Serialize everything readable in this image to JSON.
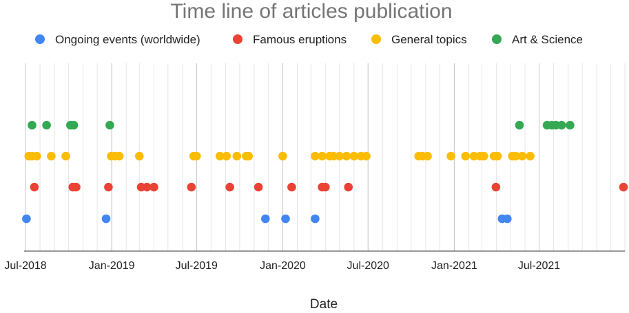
{
  "chart_data": {
    "type": "scatter",
    "title": "Time line of articles publication",
    "xlabel": "Date",
    "ylabel": "",
    "x_axis": {
      "type": "date",
      "min": "2018-07-01",
      "max": "2021-12-31",
      "tick_labels": [
        "Jul-2018",
        "Jan-2019",
        "Jul-2019",
        "Jan-2020",
        "Jul-2020",
        "Jan-2021",
        "Jul-2021"
      ],
      "tick_dates": [
        "2018-07-01",
        "2019-01-01",
        "2019-07-01",
        "2020-01-01",
        "2020-07-01",
        "2021-01-01",
        "2021-07-01"
      ],
      "minor_grid": "monthly"
    },
    "legend": {
      "position": "top"
    },
    "grid": true,
    "series": [
      {
        "name": "Ongoing events (worldwide)",
        "color": "#4285F4",
        "dates": [
          "2018-07-03",
          "2018-12-20",
          "2019-11-25",
          "2020-01-07",
          "2020-03-10",
          "2021-04-13",
          "2021-04-24"
        ]
      },
      {
        "name": "Famous eruptions",
        "color": "#EA4335",
        "dates": [
          "2018-07-20",
          "2018-10-10",
          "2018-10-17",
          "2018-12-25",
          "2019-03-05",
          "2019-03-17",
          "2019-04-01",
          "2019-06-20",
          "2019-09-10",
          "2019-11-10",
          "2020-01-20",
          "2020-03-25",
          "2020-04-01",
          "2020-05-20",
          "2021-03-31",
          "2021-12-28"
        ]
      },
      {
        "name": "General topics",
        "color": "#FBBC04",
        "dates": [
          "2018-07-08",
          "2018-07-15",
          "2018-07-25",
          "2018-08-25",
          "2018-09-25",
          "2018-12-31",
          "2019-01-08",
          "2019-01-17",
          "2019-03-01",
          "2019-06-25",
          "2019-07-01",
          "2019-08-20",
          "2019-09-03",
          "2019-09-25",
          "2019-10-15",
          "2019-10-20",
          "2020-01-01",
          "2020-03-10",
          "2020-03-25",
          "2020-04-10",
          "2020-04-18",
          "2020-05-01",
          "2020-05-16",
          "2020-06-01",
          "2020-06-16",
          "2020-06-27",
          "2020-10-17",
          "2020-10-25",
          "2020-11-05",
          "2020-12-25",
          "2021-01-25",
          "2021-02-12",
          "2021-02-25",
          "2021-03-05",
          "2021-03-27",
          "2021-04-03",
          "2021-05-05",
          "2021-05-12",
          "2021-05-26",
          "2021-06-12"
        ]
      },
      {
        "name": "Art & Science",
        "color": "#34A853",
        "dates": [
          "2018-07-15",
          "2018-08-15",
          "2018-10-05",
          "2018-10-12",
          "2018-12-28",
          "2021-05-20",
          "2021-07-18",
          "2021-07-28",
          "2021-08-06",
          "2021-08-18",
          "2021-09-05"
        ]
      }
    ]
  }
}
